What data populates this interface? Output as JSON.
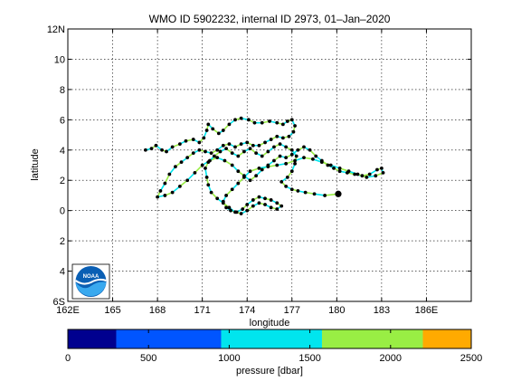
{
  "chart_data": {
    "type": "scatter",
    "title": "WMO ID 5902232, internal ID 2973, 01–Jan–2020",
    "xlabel": "longitude",
    "ylabel": "latitude",
    "xlim": [
      162,
      189
    ],
    "ylim": [
      -6,
      12
    ],
    "x_ticks": [
      162,
      165,
      168,
      171,
      174,
      177,
      180,
      183,
      186
    ],
    "x_tick_labels": [
      "162E",
      "165",
      "168",
      "171",
      "174",
      "177",
      "180",
      "183",
      "186E"
    ],
    "y_ticks": [
      -6,
      -4,
      -2,
      0,
      2,
      4,
      6,
      8,
      10,
      12
    ],
    "y_tick_labels": [
      "6S",
      "4",
      "2",
      "0",
      "2",
      "4",
      "6",
      "8",
      "10",
      "12N"
    ],
    "grid": true,
    "track_colors": [
      "#00e5ee",
      "#99ee44"
    ],
    "point_color": "#000000",
    "track": [
      [
        167.2,
        4.0
      ],
      [
        167.6,
        4.1
      ],
      [
        167.9,
        4.3
      ],
      [
        168.3,
        4.0
      ],
      [
        168.6,
        3.9
      ],
      [
        169.0,
        4.2
      ],
      [
        169.5,
        4.4
      ],
      [
        169.9,
        4.6
      ],
      [
        170.4,
        4.7
      ],
      [
        170.8,
        4.5
      ],
      [
        171.1,
        4.8
      ],
      [
        171.3,
        5.3
      ],
      [
        171.4,
        5.7
      ],
      [
        171.7,
        5.4
      ],
      [
        172.1,
        5.1
      ],
      [
        172.4,
        5.3
      ],
      [
        172.8,
        5.7
      ],
      [
        173.2,
        6.0
      ],
      [
        173.6,
        6.1
      ],
      [
        174.1,
        6.0
      ],
      [
        174.5,
        5.8
      ],
      [
        175.0,
        5.8
      ],
      [
        175.5,
        5.9
      ],
      [
        176.0,
        5.8
      ],
      [
        176.4,
        5.7
      ],
      [
        176.7,
        5.9
      ],
      [
        177.0,
        6.0
      ],
      [
        177.2,
        5.6
      ],
      [
        177.1,
        5.2
      ],
      [
        176.8,
        4.9
      ],
      [
        176.4,
        4.8
      ],
      [
        176.0,
        4.9
      ],
      [
        175.6,
        4.7
      ],
      [
        175.2,
        4.5
      ],
      [
        174.8,
        4.3
      ],
      [
        174.4,
        4.3
      ],
      [
        174.0,
        4.5
      ],
      [
        173.6,
        4.4
      ],
      [
        173.2,
        4.2
      ],
      [
        172.8,
        4.4
      ],
      [
        172.4,
        4.3
      ],
      [
        172.0,
        4.0
      ],
      [
        171.6,
        3.8
      ],
      [
        171.2,
        3.9
      ],
      [
        170.8,
        4.0
      ],
      [
        170.4,
        3.8
      ],
      [
        170.0,
        3.5
      ],
      [
        169.6,
        3.2
      ],
      [
        169.2,
        2.9
      ],
      [
        168.8,
        2.4
      ],
      [
        168.5,
        1.8
      ],
      [
        168.2,
        1.3
      ],
      [
        168.0,
        0.9
      ],
      [
        168.5,
        1.0
      ],
      [
        169.0,
        1.2
      ],
      [
        169.5,
        1.6
      ],
      [
        170.0,
        2.0
      ],
      [
        170.5,
        2.5
      ],
      [
        171.0,
        3.0
      ],
      [
        171.5,
        3.3
      ],
      [
        172.0,
        3.5
      ],
      [
        172.5,
        3.3
      ],
      [
        173.0,
        3.0
      ],
      [
        173.4,
        2.6
      ],
      [
        173.8,
        2.3
      ],
      [
        174.2,
        2.0
      ],
      [
        174.6,
        2.3
      ],
      [
        175.0,
        2.7
      ],
      [
        175.4,
        3.0
      ],
      [
        175.8,
        3.3
      ],
      [
        176.2,
        3.6
      ],
      [
        176.6,
        3.5
      ],
      [
        177.0,
        3.7
      ],
      [
        177.4,
        4.0
      ],
      [
        177.8,
        4.2
      ],
      [
        178.2,
        4.0
      ],
      [
        178.6,
        3.6
      ],
      [
        179.0,
        3.3
      ],
      [
        179.4,
        3.0
      ],
      [
        179.8,
        2.8
      ],
      [
        180.2,
        2.6
      ],
      [
        180.7,
        2.5
      ],
      [
        181.2,
        2.4
      ],
      [
        181.7,
        2.3
      ],
      [
        182.2,
        2.4
      ],
      [
        182.7,
        2.7
      ],
      [
        183.0,
        2.8
      ],
      [
        183.1,
        2.5
      ],
      [
        182.6,
        2.3
      ],
      [
        182.0,
        2.2
      ],
      [
        181.4,
        2.4
      ],
      [
        180.8,
        2.6
      ],
      [
        180.2,
        2.8
      ],
      [
        179.6,
        3.0
      ],
      [
        179.0,
        3.2
      ],
      [
        178.4,
        3.4
      ],
      [
        177.8,
        3.5
      ],
      [
        177.2,
        3.3
      ],
      [
        176.6,
        3.1
      ],
      [
        176.0,
        3.0
      ],
      [
        175.4,
        2.9
      ],
      [
        174.8,
        2.8
      ],
      [
        174.2,
        2.6
      ],
      [
        173.8,
        2.2
      ],
      [
        173.4,
        1.8
      ],
      [
        173.0,
        1.4
      ],
      [
        172.6,
        1.0
      ],
      [
        172.4,
        0.6
      ],
      [
        172.6,
        0.2
      ],
      [
        172.9,
        0.0
      ],
      [
        173.3,
        -0.1
      ],
      [
        173.7,
        0.1
      ],
      [
        174.0,
        0.4
      ],
      [
        174.4,
        0.7
      ],
      [
        174.8,
        0.9
      ],
      [
        175.2,
        0.8
      ],
      [
        175.6,
        0.7
      ],
      [
        176.0,
        0.5
      ],
      [
        176.3,
        0.3
      ],
      [
        176.0,
        0.1
      ],
      [
        175.6,
        0.2
      ],
      [
        175.2,
        0.4
      ],
      [
        174.8,
        0.5
      ],
      [
        174.4,
        0.3
      ],
      [
        174.0,
        0.0
      ],
      [
        173.6,
        -0.2
      ],
      [
        173.2,
        -0.1
      ],
      [
        172.8,
        0.2
      ],
      [
        172.4,
        0.5
      ],
      [
        172.0,
        0.8
      ],
      [
        171.6,
        1.2
      ],
      [
        171.4,
        1.7
      ],
      [
        171.3,
        2.2
      ],
      [
        171.2,
        2.8
      ],
      [
        171.4,
        3.2
      ],
      [
        171.8,
        3.6
      ],
      [
        172.2,
        3.9
      ],
      [
        172.6,
        4.1
      ],
      [
        173.0,
        3.8
      ],
      [
        173.4,
        3.6
      ],
      [
        173.8,
        3.9
      ],
      [
        174.2,
        4.1
      ],
      [
        174.6,
        3.8
      ],
      [
        175.0,
        3.6
      ],
      [
        175.4,
        3.9
      ],
      [
        175.8,
        4.2
      ],
      [
        176.2,
        4.4
      ],
      [
        176.6,
        4.2
      ],
      [
        177.0,
        4.0
      ],
      [
        177.3,
        3.6
      ],
      [
        177.2,
        3.1
      ],
      [
        177.0,
        2.6
      ],
      [
        176.7,
        2.2
      ],
      [
        176.3,
        1.9
      ],
      [
        176.6,
        1.6
      ],
      [
        177.0,
        1.4
      ],
      [
        177.4,
        1.3
      ],
      [
        177.9,
        1.2
      ],
      [
        178.5,
        1.1
      ],
      [
        179.2,
        1.0
      ],
      [
        180.1,
        1.1
      ]
    ],
    "last_position": [
      180.1,
      1.1
    ],
    "colorbar": {
      "label": "pressure [dbar]",
      "range": [
        0,
        2500
      ],
      "ticks": [
        0,
        500,
        1000,
        1500,
        2000,
        2500
      ],
      "bands": [
        {
          "from": 0,
          "to": 300,
          "color": "#00008f"
        },
        {
          "from": 300,
          "to": 950,
          "color": "#0055ff"
        },
        {
          "from": 950,
          "to": 1575,
          "color": "#00e5ee"
        },
        {
          "from": 1575,
          "to": 2200,
          "color": "#99ee44"
        },
        {
          "from": 2200,
          "to": 2500,
          "color": "#ffaa00"
        }
      ]
    },
    "logo": {
      "text": "NOAA",
      "icon": "noaa-logo-icon"
    }
  }
}
